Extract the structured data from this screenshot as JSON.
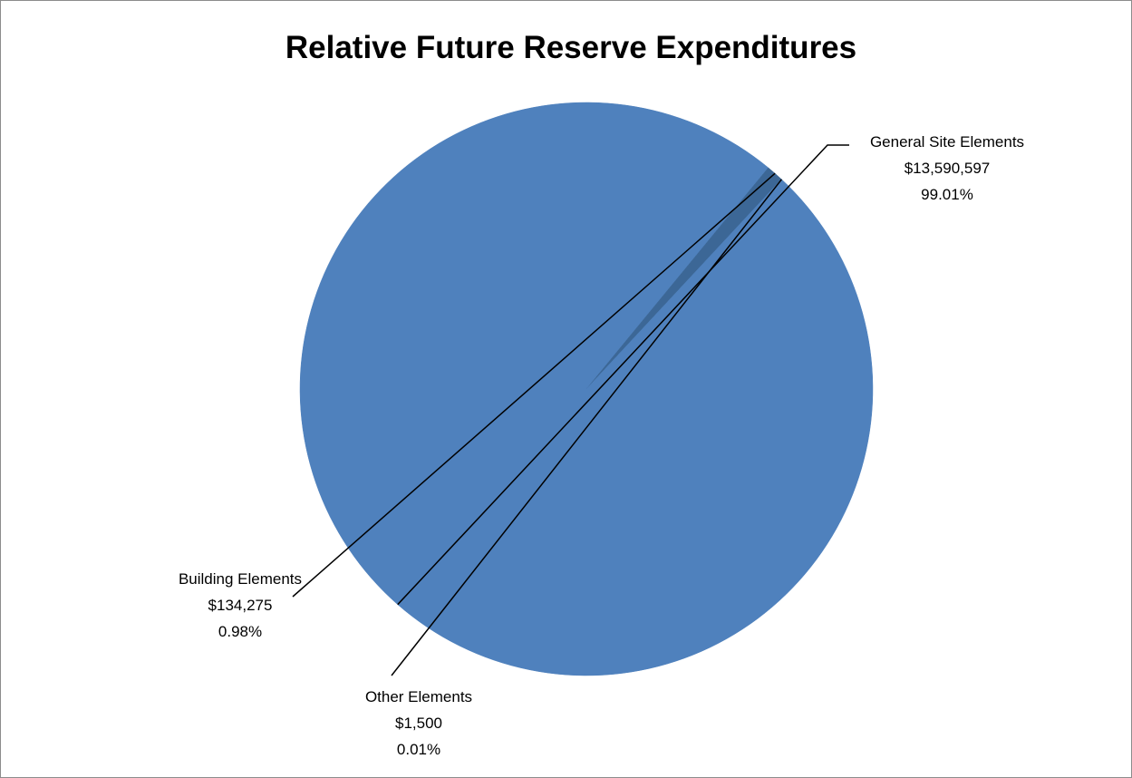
{
  "chart_data": {
    "type": "pie",
    "title": "Relative Future Reserve Expenditures",
    "slices": [
      {
        "name": "General Site Elements",
        "value": 13590597,
        "value_label": "$13,590,597",
        "percent_label": "99.01%",
        "color": "#4f81bd"
      },
      {
        "name": "Building Elements",
        "value": 134275,
        "value_label": "$134,275",
        "percent_label": "0.98%",
        "color": "#3c6796"
      },
      {
        "name": "Other Elements",
        "value": 1500,
        "value_label": "$1,500",
        "percent_label": "0.01%",
        "color": "#4f81bd"
      }
    ],
    "legend": "none",
    "data_labels": "outside with leader lines"
  }
}
